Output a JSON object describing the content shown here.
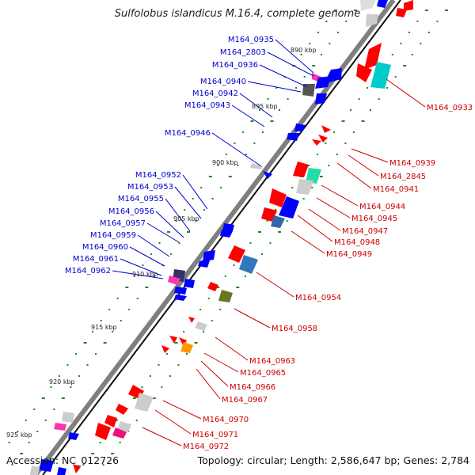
{
  "title": "Sulfolobus islandicus M.16.4, complete genome",
  "footer": {
    "accession": "Accession: NC_012726",
    "summary": "Topology: circular; Length: 2,586,647 bp; Genes: 2,784"
  },
  "scale_ticks": [
    "890 kbp",
    "895 kbp",
    "900 kbp",
    "905 kbp",
    "910 kbp",
    "915 kbp",
    "920 kbp",
    "925 kbp"
  ],
  "genes_left": [
    "M164_0935",
    "M164_2803",
    "M164_0936",
    "M164_0940",
    "M164_0942",
    "M164_0943",
    "M164_0946",
    "M164_0952",
    "M164_0953",
    "M164_0955",
    "M164_0956",
    "M164_0957",
    "M164_0959",
    "M164_0960",
    "M164_0961",
    "M164_0962"
  ],
  "genes_right": [
    "M164_0933",
    "M164_0939",
    "M164_2845",
    "M164_0941",
    "M164_0944",
    "M164_0945",
    "M164_0947",
    "M164_0948",
    "M164_0949",
    "M164_0954",
    "M164_0958",
    "M164_0963",
    "M164_0965",
    "M164_0966",
    "M164_0967",
    "M164_0970",
    "M164_0971",
    "M164_0972"
  ],
  "colors": {
    "backbone": "#7f7f7f",
    "forward_strand": "#0000ff",
    "reverse_strand": "#ff0000",
    "label_forward": "#0000cc",
    "label_reverse": "#cc0000",
    "tick": "#1a8a1a"
  }
}
